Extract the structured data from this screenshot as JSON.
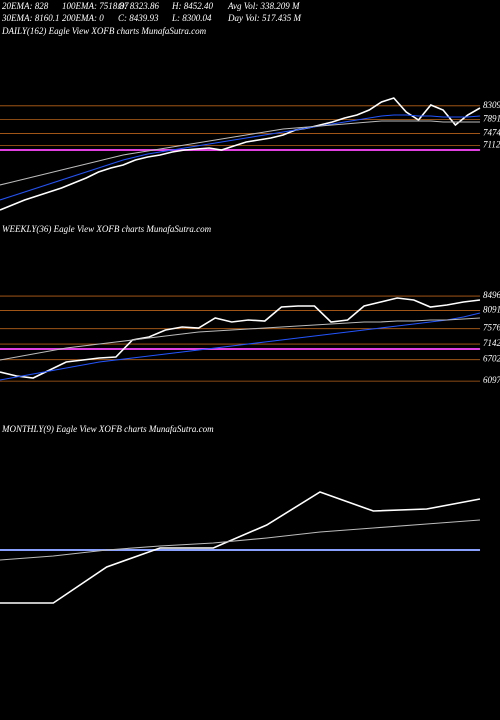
{
  "header": {
    "row1": [
      "20EMA: 828",
      "100EMA: 7518.87",
      "O: 8323.86",
      "H: 8452.40",
      "Avg Vol: 338.209 M"
    ],
    "row2": [
      "30EMA: 8160.1",
      "200EMA: 0",
      "C: 8439.93",
      "L: 8300.04",
      "Day Vol: 517.435 M"
    ]
  },
  "chart_data": [
    {
      "type": "line",
      "title": "DAILY(162) Eagle  View  XOFB charts MunafaSutra.com",
      "ylim": [
        5160,
        10600
      ],
      "yticks": [
        8309,
        7891,
        7474,
        7112
      ],
      "grid": true,
      "grid_color": "#b8621b",
      "hline": {
        "value": 6974,
        "color": "#e040e0"
      },
      "series": [
        {
          "color": "#ffffff",
          "values": [
            5160,
            5312,
            5463,
            5583,
            5704,
            5825,
            5977,
            6128,
            6309,
            6430,
            6520,
            6672,
            6762,
            6823,
            6913,
            6974,
            7004,
            7034,
            6974,
            7095,
            7216,
            7276,
            7337,
            7427,
            7578,
            7638,
            7729,
            7820,
            7941,
            8031,
            8182,
            8424,
            8545,
            8122,
            7880,
            8334,
            8182,
            7729,
            8031,
            8243
          ]
        },
        {
          "color": "#2255ff",
          "values": [
            5463,
            5583,
            5704,
            5825,
            5946,
            6067,
            6188,
            6309,
            6430,
            6551,
            6672,
            6762,
            6853,
            6913,
            6974,
            7034,
            7095,
            7155,
            7216,
            7276,
            7337,
            7397,
            7457,
            7518,
            7578,
            7638,
            7699,
            7759,
            7820,
            7880,
            7941,
            8001,
            8031,
            8031,
            8001,
            8001,
            7971,
            7971,
            7971,
            8001
          ]
        },
        {
          "color": "#bbbbbb",
          "values": [
            5916,
            6007,
            6097,
            6188,
            6279,
            6369,
            6460,
            6551,
            6641,
            6732,
            6823,
            6883,
            6943,
            7004,
            7064,
            7125,
            7185,
            7246,
            7306,
            7366,
            7427,
            7487,
            7548,
            7608,
            7638,
            7669,
            7699,
            7729,
            7759,
            7790,
            7820,
            7850,
            7850,
            7850,
            7850,
            7850,
            7820,
            7820,
            7820,
            7820
          ]
        }
      ]
    },
    {
      "type": "line",
      "title": "WEEKLY(36) Eagle  View  XOFB charts MunafaSutra.com",
      "ylim": [
        5000,
        10360
      ],
      "yticks": [
        8496,
        8091,
        7576,
        7142,
        6702,
        6097
      ],
      "grid": true,
      "grid_color": "#b8621b",
      "hline": {
        "value": 7003,
        "color": "#e040e0"
      },
      "series": [
        {
          "color": "#ffffff",
          "values": [
            6354,
            6241,
            6185,
            6411,
            6636,
            6693,
            6749,
            6777,
            7257,
            7341,
            7539,
            7624,
            7595,
            7878,
            7765,
            7821,
            7793,
            8188,
            8216,
            8216,
            7765,
            7821,
            8216,
            8329,
            8442,
            8385,
            8188,
            8244,
            8329,
            8385
          ]
        },
        {
          "color": "#2255ff",
          "values": [
            6129,
            6213,
            6298,
            6382,
            6467,
            6552,
            6636,
            6693,
            6749,
            6806,
            6862,
            6918,
            6975,
            7031,
            7088,
            7144,
            7200,
            7257,
            7313,
            7370,
            7426,
            7483,
            7539,
            7595,
            7652,
            7708,
            7765,
            7821,
            7906,
            8019
          ]
        },
        {
          "color": "#bbbbbb",
          "values": [
            6693,
            6777,
            6862,
            6947,
            7031,
            7088,
            7144,
            7200,
            7257,
            7313,
            7370,
            7426,
            7483,
            7511,
            7539,
            7567,
            7595,
            7624,
            7652,
            7680,
            7708,
            7737,
            7765,
            7765,
            7793,
            7793,
            7821,
            7821,
            7849,
            7878
          ]
        }
      ]
    },
    {
      "type": "line",
      "title": "MONTHLY(9) Eagle  View  XOFB charts MunafaSutra.com",
      "ylim": [
        4000,
        11000
      ],
      "grid": false,
      "hline": {
        "value": 7888,
        "color": "#8aa0ff"
      },
      "series": [
        {
          "color": "#ffffff",
          "values": [
            6514,
            6514,
            7448,
            7940,
            7940,
            8537,
            9392,
            8900,
            8951,
            9211
          ]
        },
        {
          "color": "#bbbbbb",
          "values": [
            7629,
            7733,
            7888,
            7992,
            8070,
            8200,
            8355,
            8459,
            8563,
            8666
          ]
        }
      ]
    }
  ]
}
